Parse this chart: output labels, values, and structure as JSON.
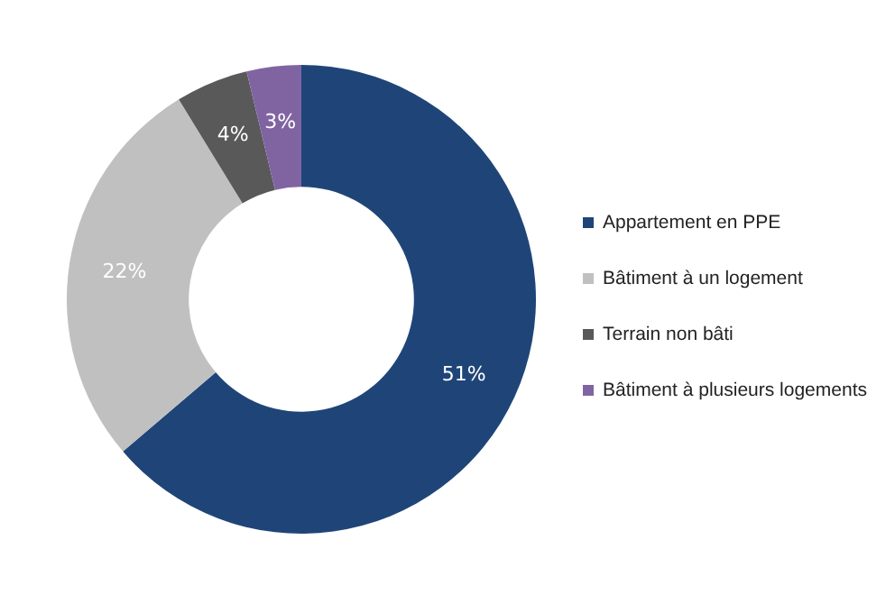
{
  "chart_data": {
    "type": "donut",
    "categories": [
      "Appartement en PPE",
      "Bâtiment à un logement",
      "Terrain non bâti",
      "Bâtiment à plusieurs logements"
    ],
    "values": [
      51,
      22,
      4,
      3
    ],
    "colors": [
      "#1f4578",
      "#c0c0c0",
      "#595959",
      "#8064a2"
    ],
    "value_labels": [
      "51%",
      "22%",
      "4%",
      "3%"
    ],
    "legend": "right"
  }
}
